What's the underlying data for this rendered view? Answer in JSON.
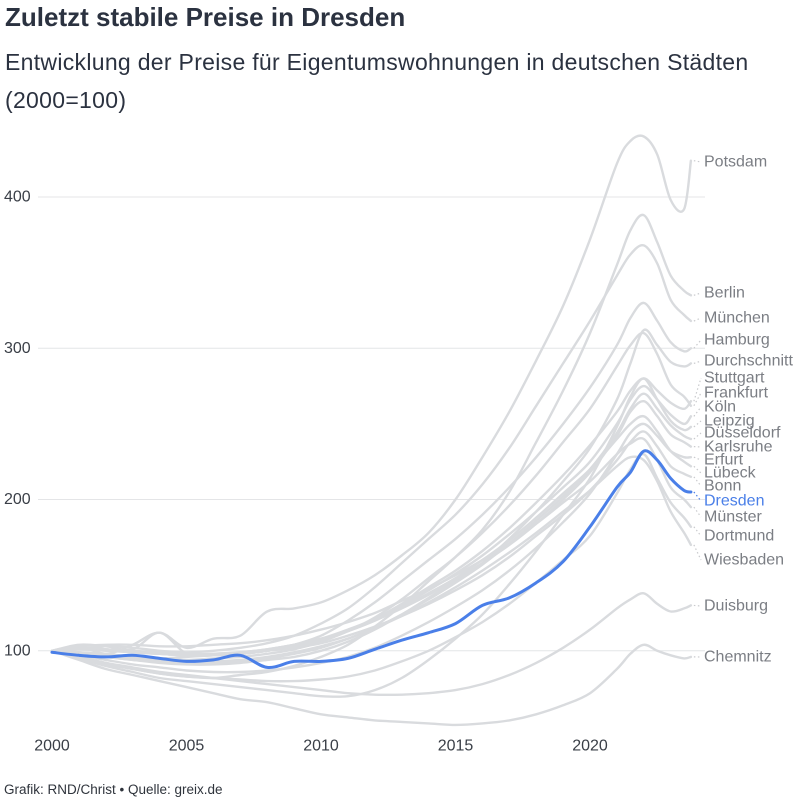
{
  "chart_data": {
    "type": "line",
    "title": "Zuletzt stabile Preise in Dresden",
    "subtitle": "Entwicklung der Preise für Eigentumswohnungen in deutschen Städten (2000=100)",
    "xlim": [
      2000,
      2024
    ],
    "ylim": [
      45,
      440
    ],
    "x_ticks": [
      2000,
      2005,
      2010,
      2015,
      2020
    ],
    "y_ticks": [
      100,
      200,
      300,
      400
    ],
    "grid": {
      "horizontal": true,
      "vertical": false
    },
    "legend": "right",
    "x": [
      2000,
      2001,
      2002,
      2003,
      2004,
      2005,
      2006,
      2007,
      2008,
      2009,
      2010,
      2011,
      2012,
      2013,
      2014,
      2015,
      2016,
      2017,
      2018,
      2019,
      2020,
      2021,
      2021.5,
      2022,
      2022.5,
      2023,
      2023.5,
      2023.75
    ],
    "series": [
      {
        "name": "Potsdam",
        "values": [
          100,
          103,
          98,
          104,
          112,
          102,
          108,
          110,
          126,
          128,
          132,
          140,
          150,
          163,
          178,
          200,
          228,
          258,
          292,
          328,
          372,
          422,
          437,
          440,
          428,
          398,
          392,
          424
        ]
      },
      {
        "name": "Berlin",
        "values": [
          100,
          96,
          92,
          88,
          85,
          83,
          82,
          84,
          86,
          90,
          96,
          104,
          116,
          130,
          146,
          162,
          180,
          205,
          238,
          272,
          310,
          355,
          378,
          388,
          370,
          348,
          338,
          335
        ]
      },
      {
        "name": "München",
        "values": [
          100,
          101,
          103,
          102,
          100,
          99,
          100,
          102,
          105,
          110,
          118,
          128,
          142,
          158,
          174,
          190,
          210,
          234,
          262,
          290,
          318,
          348,
          362,
          368,
          356,
          332,
          322,
          318
        ]
      },
      {
        "name": "Hamburg",
        "values": [
          100,
          99,
          98,
          96,
          95,
          96,
          97,
          98,
          100,
          104,
          110,
          120,
          132,
          146,
          160,
          174,
          190,
          208,
          228,
          250,
          274,
          302,
          320,
          330,
          318,
          304,
          298,
          300
        ]
      },
      {
        "name": "Durchschnitt",
        "values": [
          100,
          98,
          96,
          94,
          92,
          91,
          91,
          92,
          94,
          96,
          100,
          106,
          114,
          124,
          135,
          146,
          158,
          174,
          192,
          212,
          234,
          266,
          290,
          312,
          302,
          291,
          288,
          290
        ]
      },
      {
        "name": "Stuttgart",
        "values": [
          100,
          102,
          101,
          99,
          98,
          97,
          97,
          98,
          100,
          103,
          107,
          113,
          121,
          131,
          142,
          153,
          166,
          181,
          198,
          216,
          236,
          258,
          272,
          280,
          272,
          264,
          260,
          265
        ]
      },
      {
        "name": "Frankfurt",
        "values": [
          100,
          99,
          97,
          96,
          95,
          94,
          95,
          96,
          98,
          101,
          106,
          113,
          122,
          134,
          148,
          162,
          178,
          196,
          216,
          238,
          260,
          288,
          302,
          310,
          296,
          276,
          268,
          262
        ]
      },
      {
        "name": "Köln",
        "values": [
          100,
          101,
          100,
          99,
          98,
          97,
          98,
          99,
          101,
          104,
          108,
          114,
          121,
          130,
          140,
          151,
          163,
          177,
          192,
          208,
          225,
          250,
          266,
          275,
          266,
          256,
          250,
          255
        ]
      },
      {
        "name": "Leipzig",
        "values": [
          100,
          95,
          90,
          86,
          82,
          80,
          78,
          76,
          74,
          72,
          70,
          70,
          74,
          82,
          94,
          108,
          124,
          144,
          166,
          190,
          214,
          248,
          268,
          280,
          266,
          252,
          246,
          248
        ]
      },
      {
        "name": "Düsseldorf",
        "values": [
          100,
          98,
          96,
          94,
          93,
          92,
          92,
          93,
          95,
          98,
          102,
          108,
          115,
          124,
          134,
          145,
          157,
          171,
          186,
          202,
          220,
          244,
          260,
          270,
          260,
          249,
          242,
          240
        ]
      },
      {
        "name": "Karlsruhe",
        "values": [
          100,
          102,
          101,
          100,
          99,
          98,
          98,
          99,
          101,
          104,
          108,
          113,
          120,
          128,
          137,
          147,
          158,
          170,
          184,
          200,
          218,
          242,
          258,
          265,
          255,
          243,
          238,
          235
        ]
      },
      {
        "name": "Erfurt",
        "values": [
          100,
          97,
          94,
          91,
          89,
          87,
          86,
          86,
          87,
          89,
          92,
          96,
          102,
          110,
          119,
          129,
          140,
          153,
          168,
          185,
          204,
          230,
          244,
          250,
          242,
          232,
          228,
          228
        ]
      },
      {
        "name": "Lübeck",
        "values": [
          100,
          104,
          103,
          101,
          112,
          98,
          97,
          98,
          100,
          103,
          107,
          113,
          120,
          129,
          138,
          148,
          160,
          173,
          188,
          204,
          220,
          240,
          250,
          255,
          245,
          232,
          225,
          222
        ]
      },
      {
        "name": "Bonn",
        "values": [
          100,
          102,
          101,
          99,
          98,
          97,
          97,
          98,
          100,
          102,
          105,
          110,
          116,
          123,
          131,
          140,
          150,
          162,
          176,
          190,
          206,
          226,
          238,
          245,
          235,
          222,
          217,
          215
        ]
      },
      {
        "name": "Dresden",
        "color": "#4a7fe8",
        "values": [
          99,
          97,
          96,
          97,
          95,
          93,
          94,
          97,
          89,
          93,
          93,
          95,
          101,
          107,
          112,
          118,
          130,
          135,
          145,
          159,
          182,
          208,
          218,
          232,
          226,
          214,
          206,
          205
        ]
      },
      {
        "name": "Münster",
        "values": [
          100,
          103,
          104,
          104,
          103,
          103,
          104,
          105,
          107,
          110,
          114,
          119,
          125,
          133,
          141,
          150,
          160,
          171,
          184,
          198,
          212,
          230,
          237,
          240,
          226,
          208,
          200,
          195
        ]
      },
      {
        "name": "Dortmund",
        "values": [
          100,
          95,
          91,
          88,
          85,
          83,
          82,
          81,
          80,
          80,
          81,
          83,
          87,
          93,
          100,
          109,
          119,
          131,
          145,
          160,
          176,
          204,
          220,
          230,
          214,
          198,
          188,
          182
        ]
      },
      {
        "name": "Wiesbaden",
        "values": [
          100,
          99,
          97,
          95,
          94,
          93,
          93,
          94,
          96,
          99,
          103,
          108,
          115,
          123,
          132,
          142,
          153,
          165,
          178,
          192,
          206,
          222,
          228,
          226,
          212,
          192,
          178,
          170
        ]
      },
      {
        "name": "Duisburg",
        "values": [
          100,
          96,
          92,
          89,
          86,
          84,
          82,
          80,
          78,
          76,
          74,
          72,
          71,
          71,
          72,
          74,
          78,
          84,
          92,
          102,
          114,
          128,
          134,
          138,
          131,
          126,
          128,
          130
        ]
      },
      {
        "name": "Chemnitz",
        "values": [
          100,
          94,
          88,
          84,
          80,
          76,
          72,
          68,
          66,
          62,
          58,
          56,
          54,
          53,
          52,
          51,
          52,
          54,
          58,
          64,
          72,
          88,
          98,
          104,
          100,
          97,
          95,
          96
        ]
      }
    ]
  },
  "footer": "Grafik: RND/Christ • Quelle: greix.de",
  "colors": {
    "text": "#2b3240",
    "axis_text": "#3a3f47",
    "series_label": "#7b7e84",
    "muted_line": "#d9dbde",
    "grid": "#e4e5e7",
    "leader": "#c9cacd",
    "highlight": "#4a7fe8"
  }
}
